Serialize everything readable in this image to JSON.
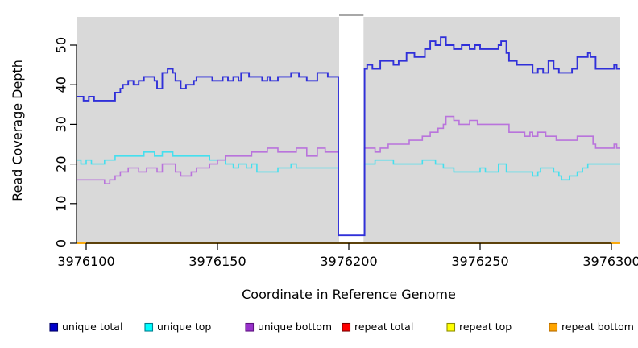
{
  "chart_data": {
    "type": "line",
    "subtype": "step-coverage-plot",
    "title": "",
    "xlabel": "Coordinate in Reference Genome",
    "ylabel": "Read Coverage Depth",
    "xlim": [
      3976096,
      3976303
    ],
    "ylim": [
      0,
      57
    ],
    "x_ticks": [
      3976100,
      3976150,
      3976200,
      3976250,
      3976300
    ],
    "y_ticks": [
      0,
      10,
      20,
      30,
      40,
      50
    ],
    "grid": false,
    "panel_background": "#D9D9D9",
    "outer_background": "#FFFFFF",
    "legend_position": "bottom",
    "gap_region": {
      "start": 3976196,
      "end": 3976206,
      "fill": "#FFFFFF",
      "top_edge_color": "#8C8C8C"
    },
    "series": [
      {
        "name": "repeat total",
        "color": "#CC0000",
        "legend_fill": "#FF0000",
        "legend_border": "#7A0000",
        "steps": [
          [
            3976096,
            0
          ]
        ]
      },
      {
        "name": "repeat top",
        "color": "#FFFF00",
        "legend_fill": "#FFFF00",
        "legend_border": "#8F8F00",
        "steps": [
          [
            3976096,
            0
          ]
        ]
      },
      {
        "name": "repeat bottom",
        "color": "#FFA500",
        "legend_fill": "#FFA500",
        "legend_border": "#B36B00",
        "steps": [
          [
            3976096,
            0
          ]
        ]
      },
      {
        "name": "unique top",
        "color": "#45DFEE",
        "legend_fill": "#00FFFF",
        "legend_border": "#007F8F",
        "steps": [
          [
            3976096,
            21
          ],
          [
            3976098,
            20
          ],
          [
            3976100,
            21
          ],
          [
            3976102,
            20
          ],
          [
            3976107,
            21
          ],
          [
            3976111,
            22
          ],
          [
            3976122,
            23
          ],
          [
            3976126,
            22
          ],
          [
            3976129,
            23
          ],
          [
            3976133,
            22
          ],
          [
            3976147,
            21
          ],
          [
            3976153,
            20
          ],
          [
            3976156,
            19
          ],
          [
            3976158,
            20
          ],
          [
            3976161,
            19
          ],
          [
            3976163,
            20
          ],
          [
            3976165,
            18
          ],
          [
            3976173,
            19
          ],
          [
            3976178,
            20
          ],
          [
            3976180,
            19
          ],
          [
            3976196,
            2
          ],
          [
            3976206,
            20
          ],
          [
            3976210,
            21
          ],
          [
            3976217,
            20
          ],
          [
            3976228,
            21
          ],
          [
            3976233,
            20
          ],
          [
            3976236,
            19
          ],
          [
            3976240,
            18
          ],
          [
            3976250,
            19
          ],
          [
            3976252,
            18
          ],
          [
            3976257,
            20
          ],
          [
            3976260,
            18
          ],
          [
            3976270,
            17
          ],
          [
            3976272,
            18
          ],
          [
            3976273,
            19
          ],
          [
            3976278,
            18
          ],
          [
            3976280,
            17
          ],
          [
            3976281,
            16
          ],
          [
            3976284,
            17
          ],
          [
            3976287,
            18
          ],
          [
            3976289,
            19
          ],
          [
            3976291,
            20
          ]
        ]
      },
      {
        "name": "unique bottom",
        "color": "#B973DC",
        "legend_fill": "#9932CC",
        "legend_border": "#5E1280",
        "steps": [
          [
            3976096,
            16
          ],
          [
            3976107,
            15
          ],
          [
            3976109,
            16
          ],
          [
            3976111,
            17
          ],
          [
            3976113,
            18
          ],
          [
            3976116,
            19
          ],
          [
            3976120,
            18
          ],
          [
            3976123,
            19
          ],
          [
            3976127,
            18
          ],
          [
            3976129,
            20
          ],
          [
            3976134,
            18
          ],
          [
            3976136,
            17
          ],
          [
            3976140,
            18
          ],
          [
            3976142,
            19
          ],
          [
            3976147,
            20
          ],
          [
            3976150,
            21
          ],
          [
            3976153,
            22
          ],
          [
            3976163,
            23
          ],
          [
            3976169,
            24
          ],
          [
            3976173,
            23
          ],
          [
            3976180,
            24
          ],
          [
            3976184,
            22
          ],
          [
            3976188,
            24
          ],
          [
            3976191,
            23
          ],
          [
            3976196,
            2
          ],
          [
            3976206,
            24
          ],
          [
            3976210,
            23
          ],
          [
            3976212,
            24
          ],
          [
            3976215,
            25
          ],
          [
            3976223,
            26
          ],
          [
            3976228,
            27
          ],
          [
            3976231,
            28
          ],
          [
            3976234,
            29
          ],
          [
            3976236,
            30
          ],
          [
            3976237,
            32
          ],
          [
            3976240,
            31
          ],
          [
            3976242,
            30
          ],
          [
            3976246,
            31
          ],
          [
            3976249,
            30
          ],
          [
            3976261,
            28
          ],
          [
            3976267,
            27
          ],
          [
            3976269,
            28
          ],
          [
            3976270,
            27
          ],
          [
            3976272,
            28
          ],
          [
            3976275,
            27
          ],
          [
            3976279,
            26
          ],
          [
            3976287,
            27
          ],
          [
            3976293,
            25
          ],
          [
            3976294,
            24
          ],
          [
            3976301,
            25
          ],
          [
            3976302,
            24
          ]
        ]
      },
      {
        "name": "unique total",
        "color": "#3030D9",
        "legend_fill": "#0000CC",
        "legend_border": "#000066",
        "steps": [
          [
            3976096,
            37
          ],
          [
            3976099,
            36
          ],
          [
            3976101,
            37
          ],
          [
            3976103,
            36
          ],
          [
            3976111,
            38
          ],
          [
            3976113,
            39
          ],
          [
            3976114,
            40
          ],
          [
            3976116,
            41
          ],
          [
            3976118,
            40
          ],
          [
            3976120,
            41
          ],
          [
            3976122,
            42
          ],
          [
            3976126,
            41
          ],
          [
            3976127,
            39
          ],
          [
            3976129,
            43
          ],
          [
            3976131,
            44
          ],
          [
            3976133,
            43
          ],
          [
            3976134,
            41
          ],
          [
            3976136,
            39
          ],
          [
            3976138,
            40
          ],
          [
            3976141,
            41
          ],
          [
            3976142,
            42
          ],
          [
            3976148,
            41
          ],
          [
            3976152,
            42
          ],
          [
            3976154,
            41
          ],
          [
            3976156,
            42
          ],
          [
            3976158,
            41
          ],
          [
            3976159,
            43
          ],
          [
            3976162,
            42
          ],
          [
            3976167,
            41
          ],
          [
            3976169,
            42
          ],
          [
            3976170,
            41
          ],
          [
            3976173,
            42
          ],
          [
            3976178,
            43
          ],
          [
            3976181,
            42
          ],
          [
            3976184,
            41
          ],
          [
            3976188,
            43
          ],
          [
            3976192,
            42
          ],
          [
            3976196,
            2
          ],
          [
            3976206,
            44
          ],
          [
            3976207,
            45
          ],
          [
            3976209,
            44
          ],
          [
            3976212,
            46
          ],
          [
            3976217,
            45
          ],
          [
            3976219,
            46
          ],
          [
            3976222,
            48
          ],
          [
            3976225,
            47
          ],
          [
            3976229,
            49
          ],
          [
            3976231,
            51
          ],
          [
            3976233,
            50
          ],
          [
            3976235,
            52
          ],
          [
            3976237,
            50
          ],
          [
            3976240,
            49
          ],
          [
            3976243,
            50
          ],
          [
            3976246,
            49
          ],
          [
            3976248,
            50
          ],
          [
            3976250,
            49
          ],
          [
            3976257,
            50
          ],
          [
            3976258,
            51
          ],
          [
            3976260,
            48
          ],
          [
            3976261,
            46
          ],
          [
            3976264,
            45
          ],
          [
            3976270,
            43
          ],
          [
            3976272,
            44
          ],
          [
            3976274,
            43
          ],
          [
            3976276,
            46
          ],
          [
            3976278,
            44
          ],
          [
            3976280,
            43
          ],
          [
            3976285,
            44
          ],
          [
            3976287,
            47
          ],
          [
            3976291,
            48
          ],
          [
            3976292,
            47
          ],
          [
            3976294,
            44
          ],
          [
            3976301,
            45
          ],
          [
            3976302,
            44
          ]
        ]
      }
    ],
    "legend": [
      {
        "label": "unique total"
      },
      {
        "label": "unique top"
      },
      {
        "label": "unique bottom"
      },
      {
        "label": "repeat total"
      },
      {
        "label": "repeat top"
      },
      {
        "label": "repeat bottom"
      }
    ]
  },
  "layout_text": {
    "xlabel": "Coordinate in Reference Genome",
    "ylabel": "Read Coverage Depth"
  }
}
